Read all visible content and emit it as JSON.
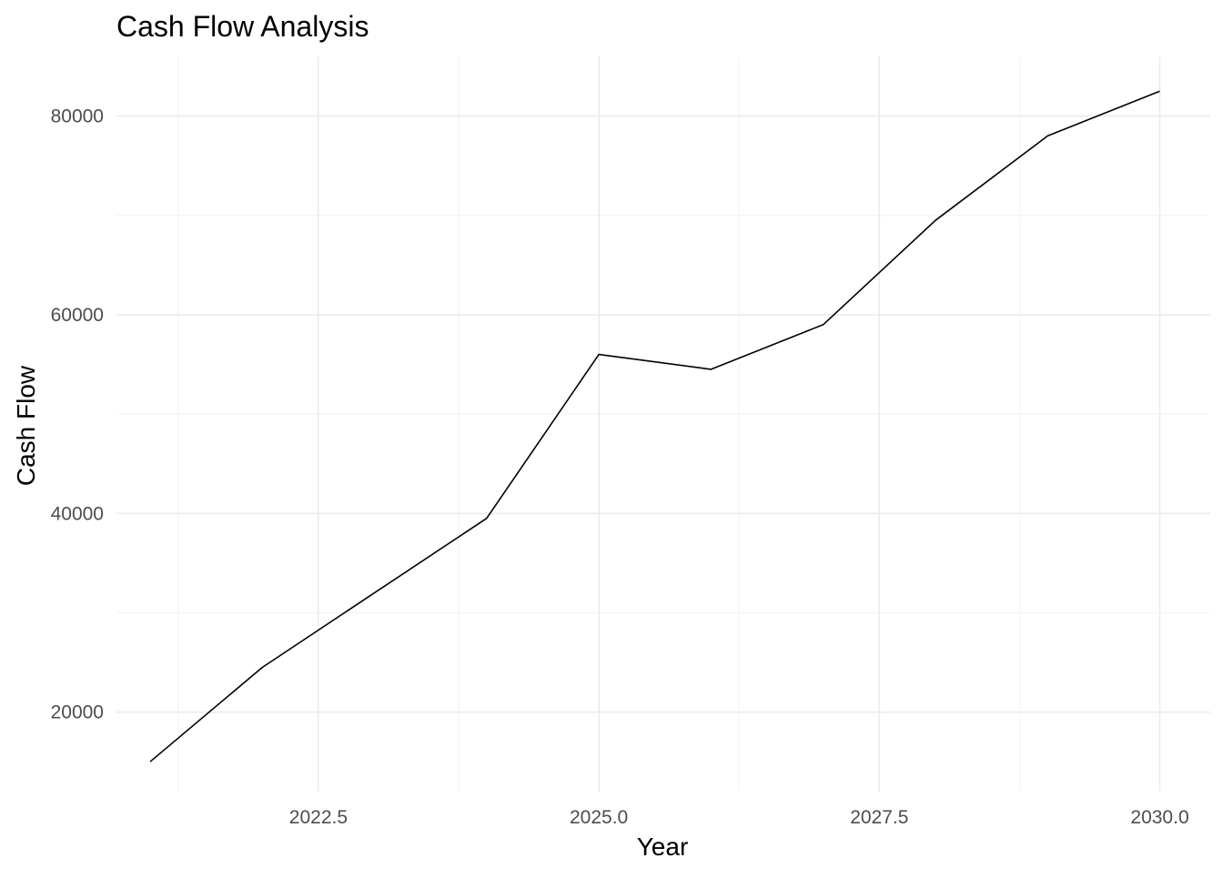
{
  "chart_data": {
    "type": "line",
    "title": "Cash Flow Analysis",
    "xlabel": "Year",
    "ylabel": "Cash Flow",
    "x": [
      2021,
      2022,
      2023,
      2024,
      2025,
      2026,
      2027,
      2028,
      2029,
      2030
    ],
    "series": [
      {
        "values": [
          15000,
          24500,
          32000,
          39500,
          56000,
          54500,
          59000,
          69500,
          78000,
          82500
        ]
      }
    ],
    "xlim": [
      2020.7,
      2030.45
    ],
    "ylim": [
      12000,
      86000
    ],
    "x_ticks": [
      2022.5,
      2025.0,
      2027.5,
      2030.0
    ],
    "x_tick_labels": [
      "2022.5",
      "2025.0",
      "2027.5",
      "2030.0"
    ],
    "x_minor_ticks": [
      2021.25,
      2023.75,
      2026.25,
      2028.75
    ],
    "y_ticks": [
      20000,
      40000,
      60000,
      80000
    ],
    "y_tick_labels": [
      "20000",
      "40000",
      "60000",
      "80000"
    ],
    "y_minor_ticks": [
      30000,
      50000,
      70000
    ],
    "grid": true,
    "legend": "none",
    "line_color": "#000000",
    "grid_color": "#ebebeb",
    "background_color": "#ffffff"
  }
}
